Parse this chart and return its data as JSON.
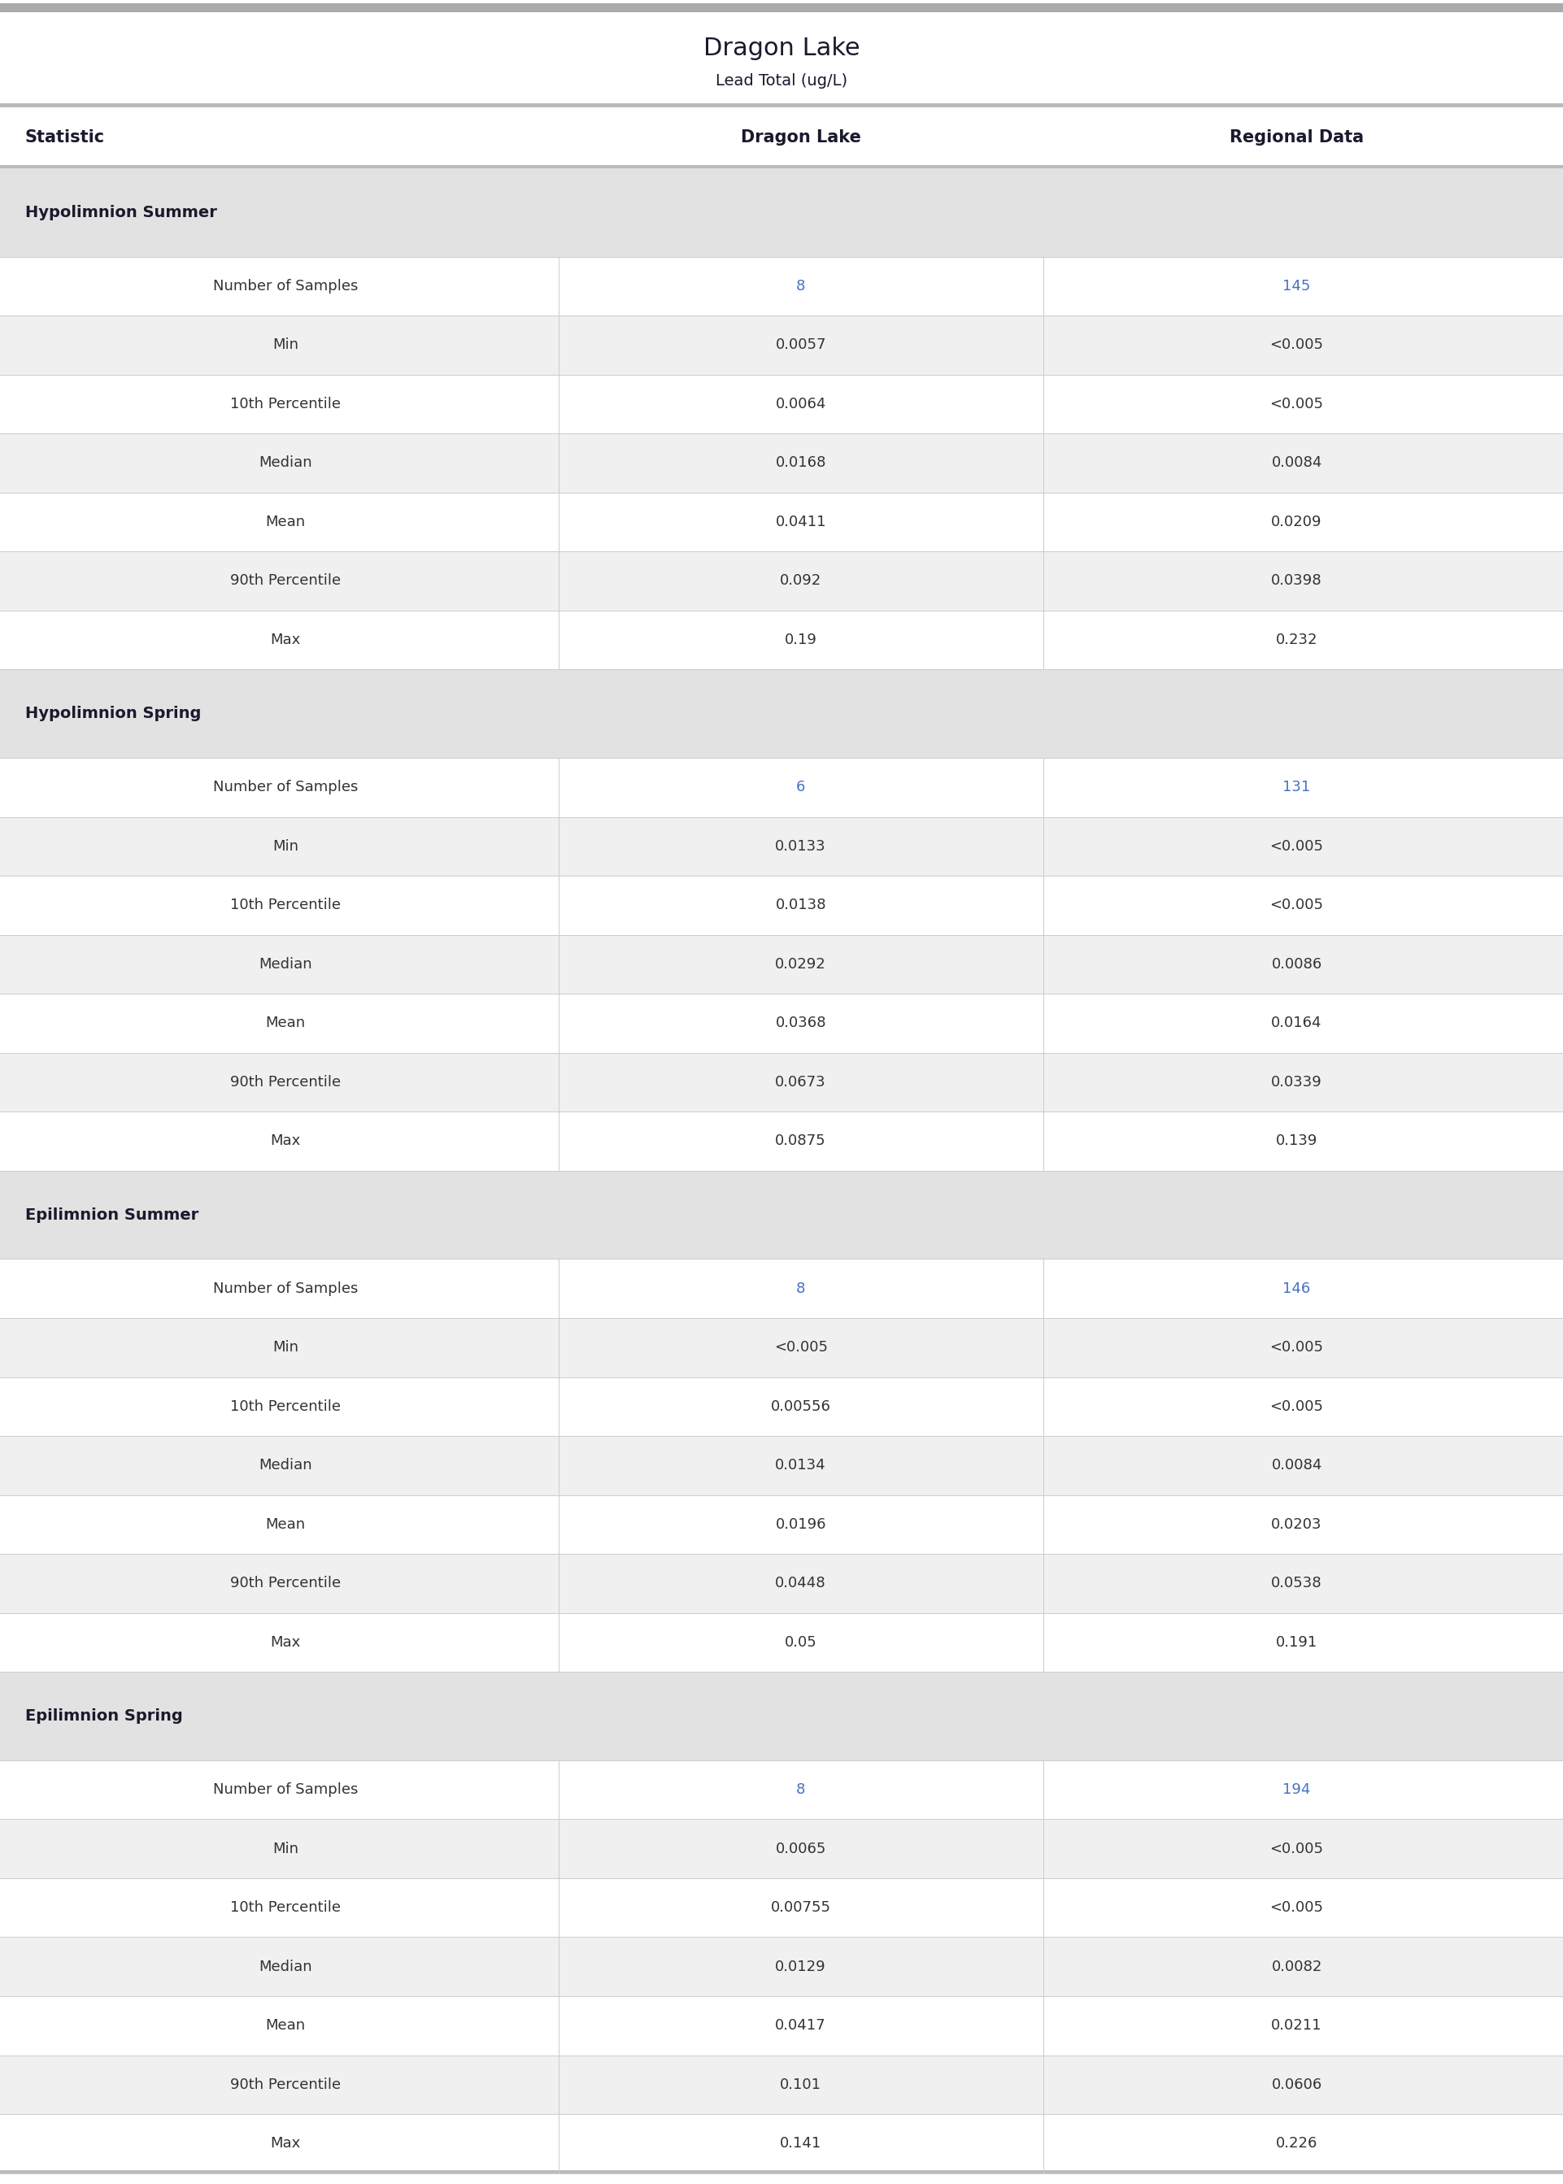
{
  "title": "Dragon Lake",
  "subtitle": "Lead Total (ug/L)",
  "col_headers": [
    "Statistic",
    "Dragon Lake",
    "Regional Data"
  ],
  "sections": [
    {
      "name": "Hypolimnion Summer",
      "rows": [
        [
          "Number of Samples",
          "8",
          "145"
        ],
        [
          "Min",
          "0.0057",
          "<0.005"
        ],
        [
          "10th Percentile",
          "0.0064",
          "<0.005"
        ],
        [
          "Median",
          "0.0168",
          "0.0084"
        ],
        [
          "Mean",
          "0.0411",
          "0.0209"
        ],
        [
          "90th Percentile",
          "0.092",
          "0.0398"
        ],
        [
          "Max",
          "0.19",
          "0.232"
        ]
      ]
    },
    {
      "name": "Hypolimnion Spring",
      "rows": [
        [
          "Number of Samples",
          "6",
          "131"
        ],
        [
          "Min",
          "0.0133",
          "<0.005"
        ],
        [
          "10th Percentile",
          "0.0138",
          "<0.005"
        ],
        [
          "Median",
          "0.0292",
          "0.0086"
        ],
        [
          "Mean",
          "0.0368",
          "0.0164"
        ],
        [
          "90th Percentile",
          "0.0673",
          "0.0339"
        ],
        [
          "Max",
          "0.0875",
          "0.139"
        ]
      ]
    },
    {
      "name": "Epilimnion Summer",
      "rows": [
        [
          "Number of Samples",
          "8",
          "146"
        ],
        [
          "Min",
          "<0.005",
          "<0.005"
        ],
        [
          "10th Percentile",
          "0.00556",
          "<0.005"
        ],
        [
          "Median",
          "0.0134",
          "0.0084"
        ],
        [
          "Mean",
          "0.0196",
          "0.0203"
        ],
        [
          "90th Percentile",
          "0.0448",
          "0.0538"
        ],
        [
          "Max",
          "0.05",
          "0.191"
        ]
      ]
    },
    {
      "name": "Epilimnion Spring",
      "rows": [
        [
          "Number of Samples",
          "8",
          "194"
        ],
        [
          "Min",
          "0.0065",
          "<0.005"
        ],
        [
          "10th Percentile",
          "0.00755",
          "<0.005"
        ],
        [
          "Median",
          "0.0129",
          "0.0082"
        ],
        [
          "Mean",
          "0.0417",
          "0.0211"
        ],
        [
          "90th Percentile",
          "0.101",
          "0.0606"
        ],
        [
          "Max",
          "0.141",
          "0.226"
        ]
      ]
    }
  ],
  "title_color": "#1a1a2e",
  "subtitle_color": "#1a1a2e",
  "header_text_color": "#1a1a2e",
  "section_bg_color": "#e2e2e2",
  "section_text_color": "#1a1a2e",
  "row_bg_alt": "#f0f0f0",
  "row_bg_white": "#ffffff",
  "data_text_color": "#333333",
  "regional_data_color": "#4472c4",
  "divider_color": "#cccccc",
  "top_bar_color": "#aaaaaa",
  "header_underline_color": "#bbbbbb"
}
